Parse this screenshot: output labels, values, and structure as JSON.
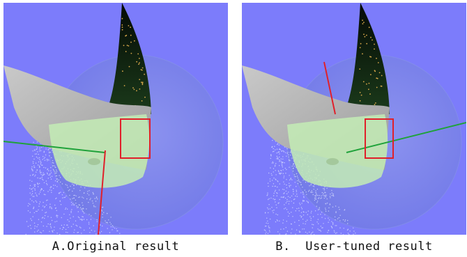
{
  "figure": {
    "panels": [
      {
        "caption": "A.Original result"
      },
      {
        "caption": "B.  User-tuned result"
      }
    ],
    "colors": {
      "background": "#7c7cfb",
      "surface": "#b9b9b9",
      "surface_highlight": "#bdeab0",
      "dark_patch": "#0f220f",
      "sphere": "#8f9fe0",
      "selection_box": "#e0202a",
      "axis_red": "#e0202a",
      "axis_green": "#1fa23a"
    }
  }
}
